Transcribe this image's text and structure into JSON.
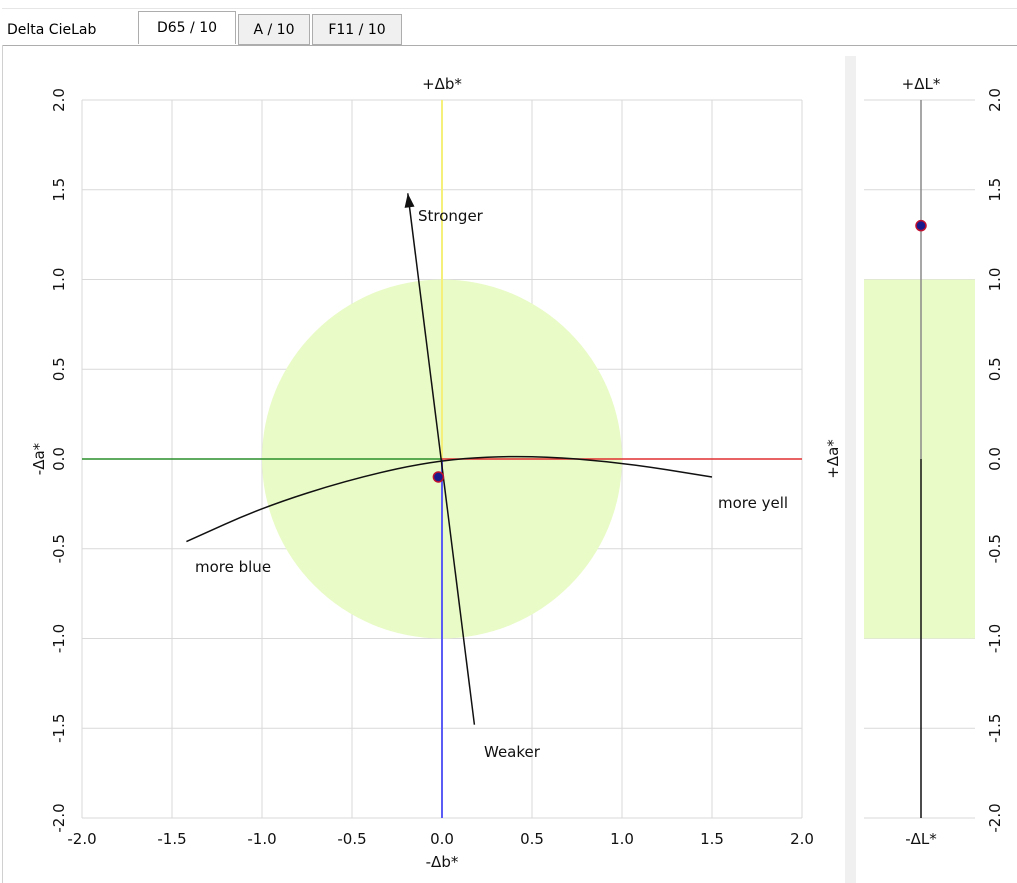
{
  "tabs": {
    "title": "Delta CieLab",
    "items": [
      {
        "label": "D65 / 10",
        "active": true
      },
      {
        "label": "A / 10",
        "active": false
      },
      {
        "label": "F11 / 10",
        "active": false
      }
    ]
  },
  "colors": {
    "tolerance_fill": "#e9fbc6",
    "grid": "#d9d9d9",
    "axis_pos_b": "#f5f07a",
    "axis_neg_b": "#5b5bf5",
    "axis_neg_a": "#2a8f2a",
    "axis_pos_a": "#e03030",
    "sample_point": "#1a1a8c",
    "sample_point_edge": "#c01030"
  },
  "chart_data": [
    {
      "type": "scatter",
      "name": "a-b plane",
      "xlim": [
        -2.0,
        2.0
      ],
      "ylim": [
        -2.0,
        2.0
      ],
      "xticks": [
        "-2.0",
        "-1.5",
        "-1.0",
        "-0.5",
        "0.0",
        "0.5",
        "1.0",
        "1.5",
        "2.0"
      ],
      "yticks": [
        "-2.0",
        "-1.5",
        "-1.0",
        "-0.5",
        "0.0",
        "0.5",
        "1.0",
        "1.5",
        "2.0"
      ],
      "xticks_values": [
        -2,
        -1.5,
        -1,
        -0.5,
        0,
        0.5,
        1,
        1.5,
        2
      ],
      "yticks_values": [
        -2,
        -1.5,
        -1,
        -0.5,
        0,
        0.5,
        1,
        1.5,
        2
      ],
      "top_label": "+Δb*",
      "bottom_label": "-Δb*",
      "left_label": "-Δa*",
      "right_label": "+Δa*",
      "grid": true,
      "tolerance_circle_radius": 1.0,
      "points": [
        {
          "x": -0.02,
          "y": -0.1
        }
      ],
      "chroma_arrow": {
        "from": [
          0.18,
          -1.48
        ],
        "to": [
          -0.19,
          1.48
        ]
      },
      "chroma_labels": {
        "stronger": "Stronger",
        "weaker": "Weaker"
      },
      "hue_arc": [
        [
          -1.42,
          -0.46
        ],
        [
          -1.0,
          -0.27
        ],
        [
          -0.5,
          -0.11
        ],
        [
          0.0,
          0.0
        ],
        [
          0.5,
          0.02
        ],
        [
          1.0,
          -0.02
        ],
        [
          1.5,
          -0.1
        ]
      ],
      "hue_labels": {
        "more_blue": "more blue",
        "more_yellow": "more yell"
      }
    },
    {
      "type": "scatter",
      "name": "lightness",
      "ylim": [
        -2.0,
        2.0
      ],
      "yticks": [
        "-2.0",
        "-1.5",
        "-1.0",
        "-0.5",
        "0.0",
        "0.5",
        "1.0",
        "1.5",
        "2.0"
      ],
      "yticks_values": [
        -2,
        -1.5,
        -1,
        -0.5,
        0,
        0.5,
        1,
        1.5,
        2
      ],
      "top_label": "+ΔL*",
      "bottom_label": "-ΔL*",
      "grid": true,
      "tolerance_band": [
        -1.0,
        1.0
      ],
      "points": [
        {
          "y": 1.3
        }
      ]
    }
  ]
}
